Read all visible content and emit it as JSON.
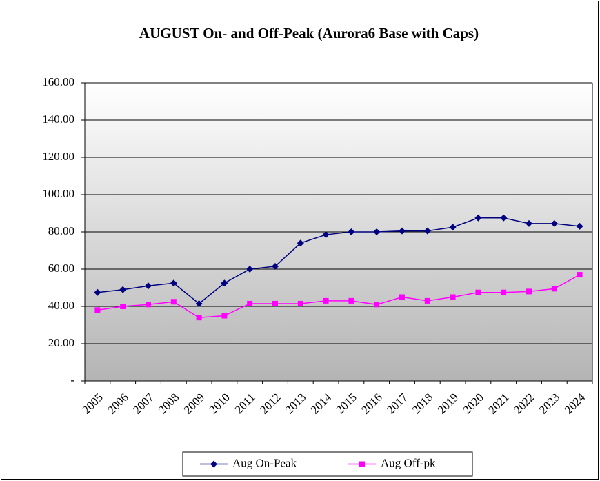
{
  "chart_data": {
    "type": "line",
    "title": "AUGUST On- and Off-Peak (Aurora6 Base with Caps)",
    "categories": [
      "2005",
      "2006",
      "2007",
      "2008",
      "2009",
      "2010",
      "2011",
      "2012",
      "2013",
      "2014",
      "2015",
      "2016",
      "2017",
      "2018",
      "2019",
      "2020",
      "2021",
      "2022",
      "2023",
      "2024"
    ],
    "series": [
      {
        "name": "Aug On-Peak",
        "color": "#000080",
        "marker": "diamond",
        "values": [
          47.5,
          49,
          51,
          52.5,
          41.5,
          52.5,
          60,
          61.5,
          74,
          78.5,
          80,
          80,
          80.5,
          80.5,
          82.5,
          87.5,
          87.5,
          84.5,
          84.5,
          83
        ]
      },
      {
        "name": "Aug Off-pk",
        "color": "#ff00ff",
        "marker": "square",
        "values": [
          38,
          40,
          41,
          42.5,
          34,
          35,
          41.5,
          41.5,
          41.5,
          43,
          43,
          41,
          45,
          43,
          45,
          47.5,
          47.5,
          48,
          49.5,
          57
        ]
      }
    ],
    "ylim": [
      0,
      160
    ],
    "yticks": [
      {
        "value": 0,
        "label": "-"
      },
      {
        "value": 20,
        "label": "20.00"
      },
      {
        "value": 40,
        "label": "40.00"
      },
      {
        "value": 60,
        "label": "60.00"
      },
      {
        "value": 80,
        "label": "80.00"
      },
      {
        "value": 100,
        "label": "100.00"
      },
      {
        "value": 120,
        "label": "120.00"
      },
      {
        "value": 140,
        "label": "140.00"
      },
      {
        "value": 160,
        "label": "160.00"
      }
    ],
    "grid": true,
    "legend": "bottom"
  }
}
